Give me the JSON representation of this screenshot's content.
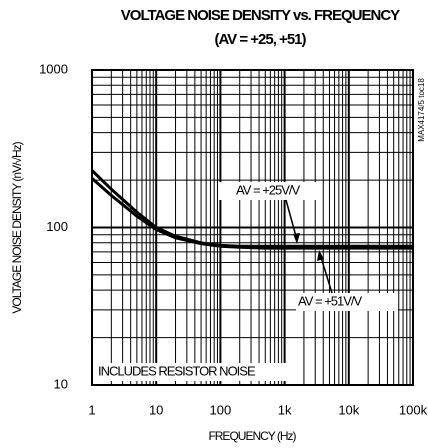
{
  "chart_data": {
    "type": "line",
    "title": "VOLTAGE NOISE DENSITY vs. FREQUENCY",
    "subtitle": "(AV = +25, +51)",
    "x_label": "FREQUENCY (Hz)",
    "y_label": "VOLTAGE NOISE DENSITY (nV/√Hz)",
    "annotations": [
      "AV = +25V/V",
      "AV = +51V/V",
      "INCLUDES RESISTOR NOISE",
      "MAX4174/5 toc18"
    ],
    "log_x": true,
    "log_y": true,
    "grid": true,
    "minor_grid": true,
    "xlim": [
      1,
      100000
    ],
    "xticks": [
      1,
      10,
      100,
      {
        "value": 1000,
        "label": "1k"
      },
      {
        "value": 10000,
        "label": "10k"
      },
      {
        "value": 100000,
        "label": "100k"
      }
    ],
    "ylim": [
      10,
      1000
    ],
    "yticks": [
      10,
      100,
      1000
    ],
    "x": [
      1,
      2,
      5,
      10,
      20,
      50,
      100,
      200,
      500,
      1000,
      10000,
      100000
    ],
    "series": [
      {
        "name": "AV = +25V/V",
        "color": "#000000",
        "values": [
          230,
          175,
          125,
          100,
          88,
          80,
          77,
          76,
          76,
          76,
          76,
          76
        ]
      },
      {
        "name": "AV = +51V/V",
        "color": "#000000",
        "values": [
          205,
          160,
          118,
          97,
          86,
          79,
          76,
          75,
          74,
          74,
          74,
          74
        ]
      }
    ]
  }
}
